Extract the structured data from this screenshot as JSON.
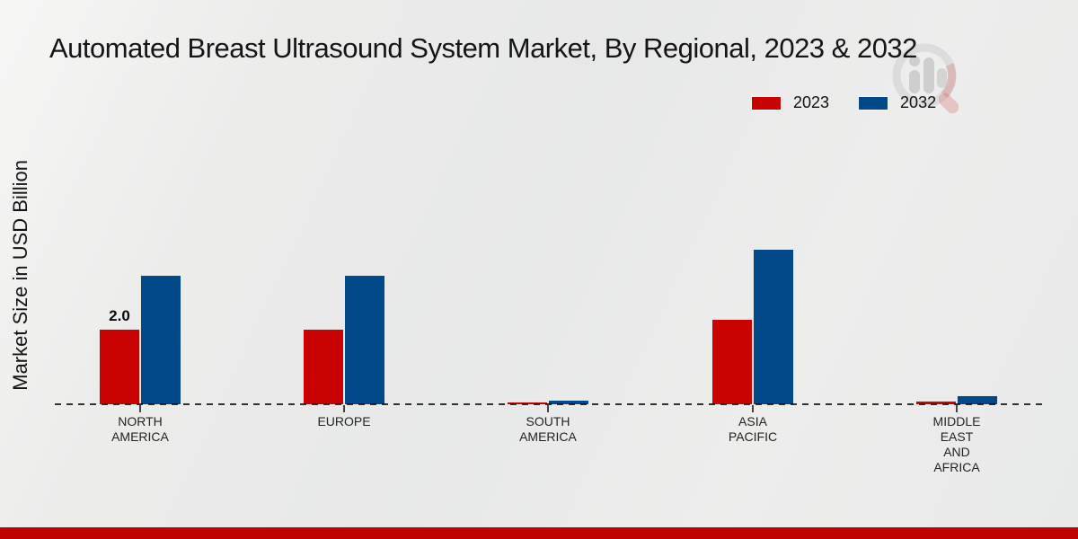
{
  "title": "Automated Breast Ultrasound System Market, By Regional, 2023 & 2032",
  "chart_data": {
    "type": "bar",
    "title": "Automated Breast Ultrasound System Market, By Regional, 2023 & 2032",
    "ylabel": "Market Size in USD Billion",
    "xlabel": "",
    "categories": [
      "NORTH\nAMERICA",
      "EUROPE",
      "SOUTH\nAMERICA",
      "ASIA\nPACIFIC",
      "MIDDLE\nEAST\nAND\nAFRICA"
    ],
    "series": [
      {
        "name": "2023",
        "color": "#c90202",
        "values": [
          2.0,
          2.0,
          0.1,
          2.25,
          0.12
        ]
      },
      {
        "name": "2032",
        "color": "#02498a",
        "values": [
          3.4,
          3.4,
          0.15,
          4.1,
          0.26
        ]
      }
    ],
    "data_labels": [
      {
        "series": "2023",
        "category_index": 0,
        "text": "2.0"
      }
    ],
    "ylim": [
      0,
      4.5
    ],
    "grid": false,
    "legend_position": "top-right",
    "baseline_style": "dashed"
  },
  "colors": {
    "bar_2023": "#c90202",
    "bar_2032": "#02498a",
    "footer_band": "#bf0300",
    "background": "#e9eaea",
    "baseline": "#333333",
    "title_text": "#151515"
  },
  "watermark_icon": "magnifier-bar-chart-logo"
}
